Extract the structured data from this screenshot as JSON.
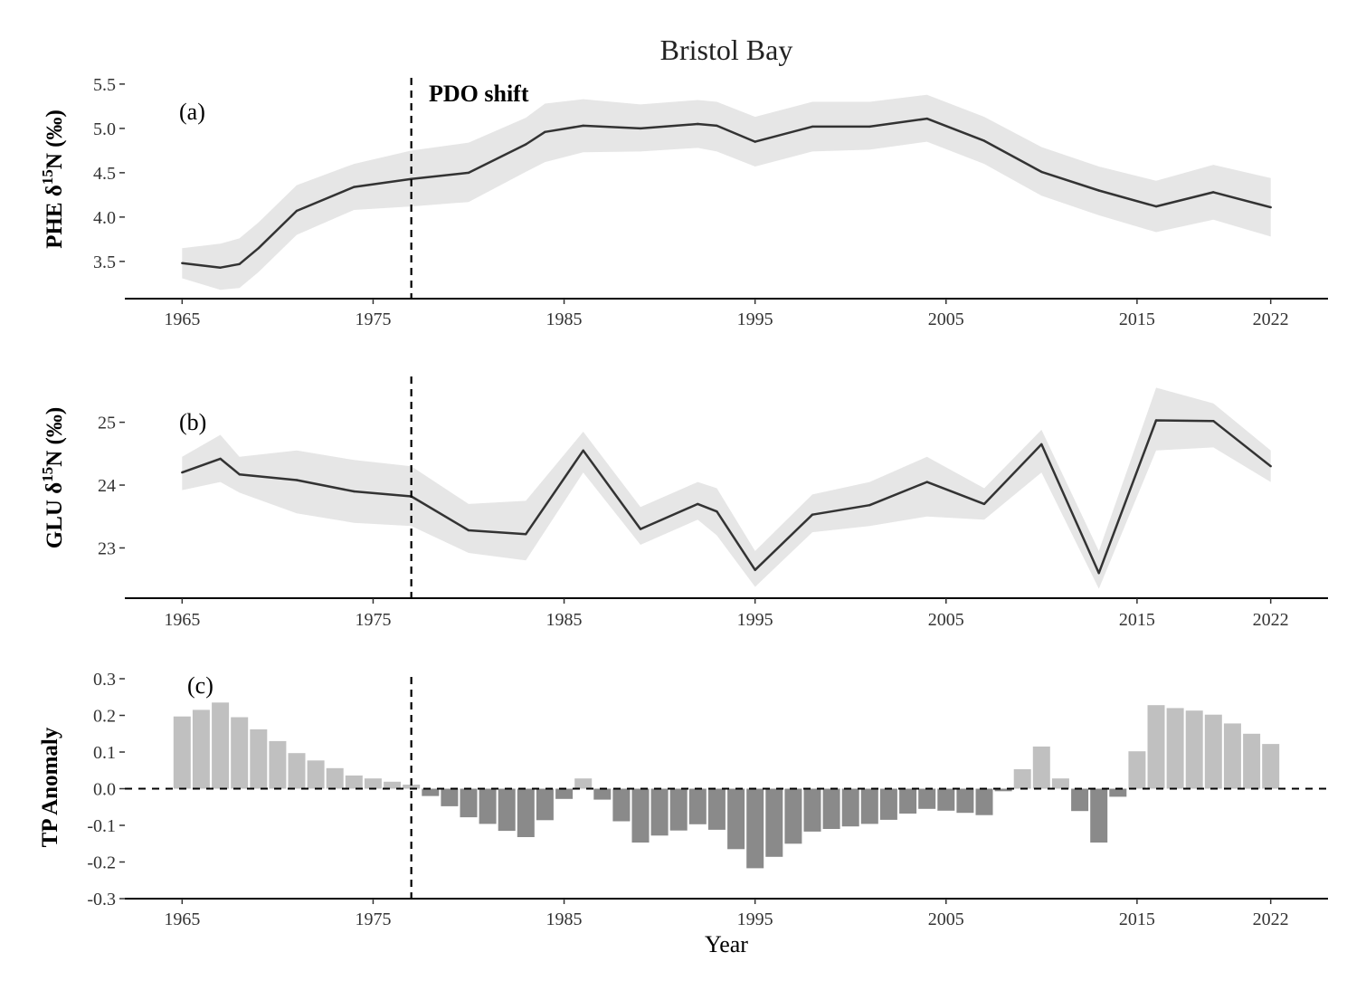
{
  "title": "Bristol Bay",
  "xlabel": "Year",
  "colors": {
    "line": "#333333",
    "ribbon": "#e6e6e6",
    "bar_positive": "#c0c0c0",
    "bar_negative": "#8a8a8a",
    "axis": "#000000"
  },
  "chart_data": [
    {
      "type": "line",
      "panel_label": "(a)",
      "ylabel_main": "PHE δ",
      "ylabel_sup": "15",
      "ylabel_end": "N (‰)",
      "annotation": "PDO shift",
      "vline_x": 1977,
      "xlim": [
        1962,
        2025
      ],
      "ylim": [
        3.08,
        5.55
      ],
      "x_ticks": [
        1965,
        1975,
        1985,
        1995,
        2005,
        2015,
        2022
      ],
      "x_tick_labels": [
        "1965",
        "1975",
        "1985",
        "1995",
        "2005",
        "2015",
        "2022"
      ],
      "y_ticks": [
        3.5,
        4.0,
        4.5,
        5.0,
        5.5
      ],
      "y_tick_labels": [
        "3.5",
        "4.0",
        "4.5",
        "5.0",
        "5.5"
      ],
      "series": [
        {
          "x": [
            1965,
            1967,
            1968,
            1969,
            1971,
            1974,
            1977,
            1980,
            1983,
            1984,
            1986,
            1989,
            1992,
            1993,
            1995,
            1998,
            2001,
            2004,
            2007,
            2010,
            2013,
            2016,
            2019,
            2022
          ],
          "y": [
            3.48,
            3.43,
            3.47,
            3.65,
            4.07,
            4.34,
            4.43,
            4.5,
            4.82,
            4.96,
            5.03,
            5.0,
            5.05,
            5.03,
            4.85,
            5.02,
            5.02,
            5.11,
            4.86,
            4.51,
            4.3,
            4.12,
            4.28,
            4.11
          ],
          "lower": [
            3.31,
            3.18,
            3.2,
            3.38,
            3.8,
            4.08,
            4.12,
            4.17,
            4.51,
            4.62,
            4.73,
            4.74,
            4.78,
            4.74,
            4.57,
            4.74,
            4.76,
            4.85,
            4.6,
            4.24,
            4.02,
            3.83,
            3.97,
            3.78
          ],
          "upper": [
            3.65,
            3.7,
            3.76,
            3.94,
            4.36,
            4.6,
            4.75,
            4.84,
            5.12,
            5.28,
            5.33,
            5.27,
            5.32,
            5.3,
            5.13,
            5.3,
            5.3,
            5.38,
            5.13,
            4.79,
            4.57,
            4.41,
            4.59,
            4.44
          ]
        }
      ]
    },
    {
      "type": "line",
      "panel_label": "(b)",
      "ylabel_main": "GLU δ",
      "ylabel_sup": "15",
      "ylabel_end": "N (‰)",
      "vline_x": 1977,
      "xlim": [
        1962,
        2025
      ],
      "ylim": [
        22.2,
        25.7
      ],
      "x_ticks": [
        1965,
        1975,
        1985,
        1995,
        2005,
        2015,
        2022
      ],
      "x_tick_labels": [
        "1965",
        "1975",
        "1985",
        "1995",
        "2005",
        "2015",
        "2022"
      ],
      "y_ticks": [
        23,
        24,
        25
      ],
      "y_tick_labels": [
        "23",
        "24",
        "25"
      ],
      "series": [
        {
          "x": [
            1965,
            1967,
            1968,
            1971,
            1974,
            1977,
            1980,
            1983,
            1986,
            1989,
            1992,
            1993,
            1995,
            1998,
            2001,
            2004,
            2007,
            2010,
            2013,
            2016,
            2019,
            2022
          ],
          "y": [
            24.2,
            24.42,
            24.17,
            24.08,
            23.9,
            23.82,
            23.28,
            23.22,
            24.55,
            23.3,
            23.7,
            23.58,
            22.65,
            23.53,
            23.68,
            24.05,
            23.7,
            24.65,
            22.6,
            25.03,
            25.02,
            24.3
          ],
          "lower": [
            23.92,
            24.05,
            23.88,
            23.55,
            23.4,
            23.35,
            22.92,
            22.8,
            24.2,
            23.05,
            23.45,
            23.2,
            22.38,
            23.25,
            23.35,
            23.5,
            23.45,
            24.2,
            22.35,
            24.55,
            24.6,
            24.05
          ],
          "upper": [
            24.45,
            24.8,
            24.45,
            24.55,
            24.4,
            24.3,
            23.7,
            23.75,
            24.85,
            23.65,
            24.05,
            23.95,
            22.95,
            23.85,
            24.05,
            24.45,
            23.95,
            24.88,
            22.95,
            25.55,
            25.3,
            24.55
          ]
        }
      ]
    },
    {
      "type": "bar",
      "panel_label": "(c)",
      "ylabel": "TP Anomaly",
      "vline_x": 1977,
      "hline_y": 0,
      "xlim": [
        1962,
        2025
      ],
      "ylim": [
        -0.3,
        0.3
      ],
      "x_ticks": [
        1965,
        1975,
        1985,
        1995,
        2005,
        2015,
        2022
      ],
      "x_tick_labels": [
        "1965",
        "1975",
        "1985",
        "1995",
        "2005",
        "2015",
        "2022"
      ],
      "y_ticks": [
        -0.3,
        -0.2,
        -0.1,
        0.0,
        0.1,
        0.2,
        0.3
      ],
      "y_tick_labels": [
        "-0.3",
        "-0.2",
        "-0.1",
        "0.0",
        "0.1",
        "0.2",
        "0.3"
      ],
      "x": [
        1965,
        1966,
        1967,
        1968,
        1969,
        1970,
        1971,
        1972,
        1973,
        1974,
        1975,
        1976,
        1977,
        1978,
        1979,
        1980,
        1981,
        1982,
        1983,
        1984,
        1985,
        1986,
        1987,
        1988,
        1989,
        1990,
        1991,
        1992,
        1993,
        1994,
        1995,
        1996,
        1997,
        1998,
        1999,
        2000,
        2001,
        2002,
        2003,
        2004,
        2005,
        2006,
        2007,
        2008,
        2009,
        2010,
        2011,
        2012,
        2013,
        2014,
        2015,
        2016,
        2017,
        2018,
        2019,
        2020,
        2021,
        2022
      ],
      "values": [
        0.197,
        0.215,
        0.235,
        0.195,
        0.162,
        0.13,
        0.097,
        0.077,
        0.056,
        0.036,
        0.028,
        0.019,
        0.011,
        -0.02,
        -0.048,
        -0.078,
        -0.096,
        -0.115,
        -0.132,
        -0.086,
        -0.028,
        0.028,
        -0.03,
        -0.089,
        -0.147,
        -0.128,
        -0.114,
        -0.097,
        -0.112,
        -0.165,
        -0.217,
        -0.186,
        -0.15,
        -0.117,
        -0.11,
        -0.103,
        -0.096,
        -0.085,
        -0.068,
        -0.055,
        -0.06,
        -0.066,
        -0.072,
        -0.007,
        0.053,
        0.115,
        0.028,
        -0.061,
        -0.147,
        -0.022,
        0.102,
        0.228,
        0.22,
        0.213,
        0.202,
        0.178,
        0.15,
        0.122
      ]
    }
  ]
}
